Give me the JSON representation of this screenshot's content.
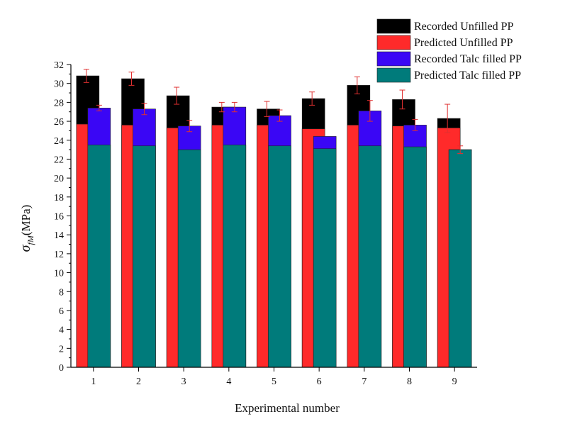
{
  "chart_data": {
    "type": "bar",
    "categories": [
      "1",
      "2",
      "3",
      "4",
      "5",
      "6",
      "7",
      "8",
      "9"
    ],
    "xlabel": "Experimental number",
    "ylabel_symbol": "σ",
    "ylabel_subscript": "fM",
    "ylabel_unit": "(MPa)",
    "ylim": [
      0,
      32
    ],
    "yticks": [
      0,
      2,
      4,
      6,
      8,
      10,
      12,
      14,
      16,
      18,
      20,
      22,
      24,
      26,
      28,
      30,
      32
    ],
    "grid": false,
    "legend_position": "top-right",
    "series": [
      {
        "name": "Recorded Unfilled PP",
        "color": "#000000",
        "values": [
          30.8,
          30.5,
          28.7,
          27.5,
          27.3,
          28.4,
          29.8,
          28.3,
          26.3
        ],
        "errors": [
          0.7,
          0.7,
          0.9,
          0.5,
          0.8,
          0.7,
          0.9,
          1.0,
          1.5
        ]
      },
      {
        "name": "Predicted Unfilled PP",
        "color": "#ff2a2a",
        "values": [
          25.7,
          25.6,
          25.3,
          25.6,
          25.6,
          25.2,
          25.6,
          25.5,
          25.3
        ]
      },
      {
        "name": "Recorded Talc filled PP",
        "color": "#3a06f5",
        "values": [
          27.4,
          27.3,
          25.5,
          27.5,
          26.6,
          24.4,
          27.1,
          25.6,
          23.0
        ],
        "errors": [
          0.3,
          0.6,
          0.6,
          0.5,
          0.6,
          0.0,
          1.1,
          0.6,
          0.4
        ]
      },
      {
        "name": "Predicted Talc filled PP",
        "color": "#007b7b",
        "values": [
          23.5,
          23.4,
          23.0,
          23.5,
          23.4,
          23.1,
          23.4,
          23.3,
          23.0
        ]
      }
    ]
  }
}
